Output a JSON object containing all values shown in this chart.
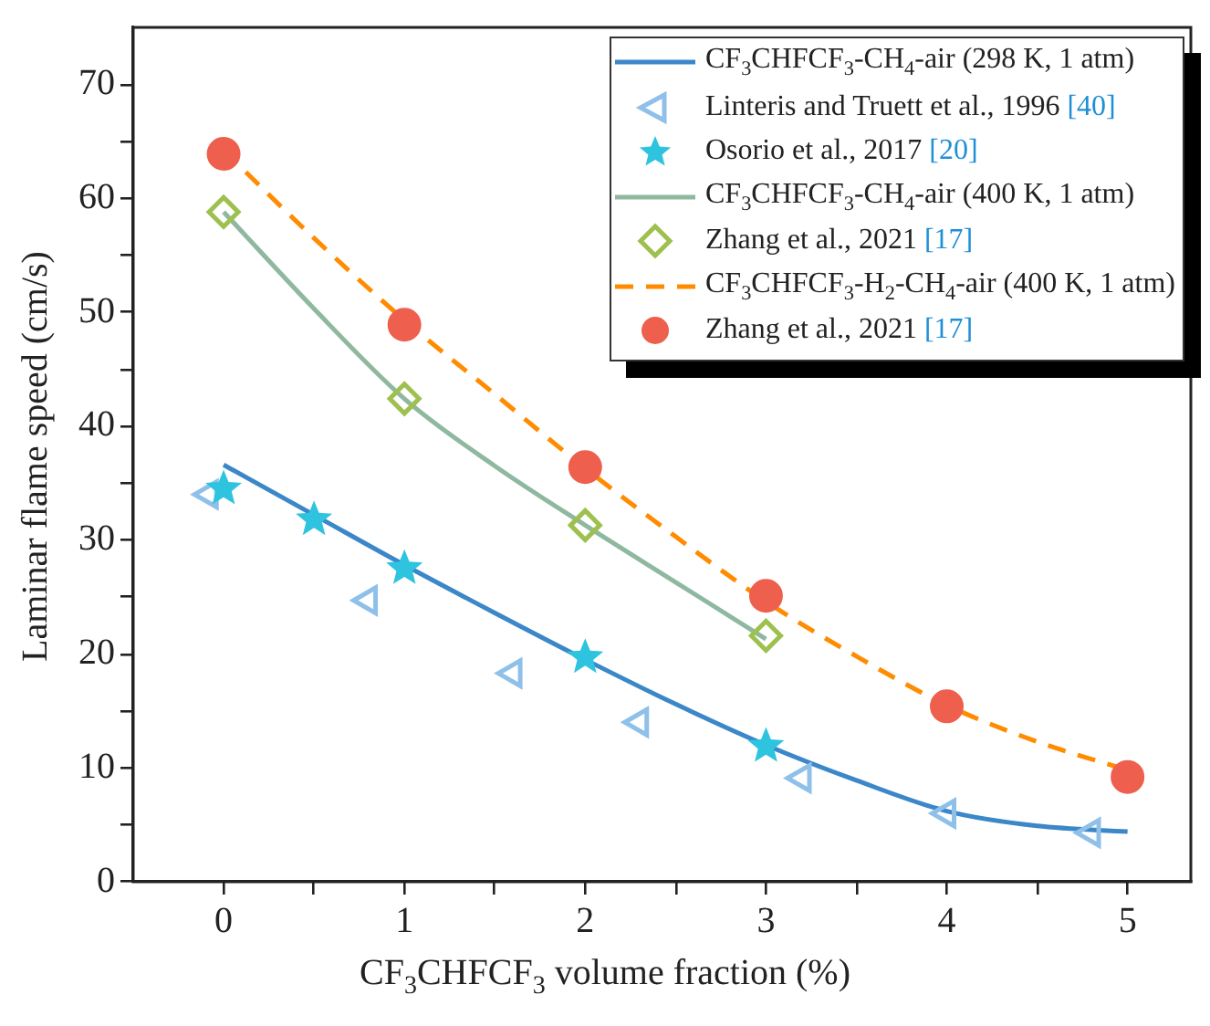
{
  "chart_data": {
    "type": "line",
    "xlabel": "CF$_{3}$CHFCF$_{3}$ volume fraction (%)",
    "ylabel": "Laminar flame speed (cm/s)",
    "xlim": [
      -0.5,
      5.35
    ],
    "ylim": [
      0,
      75
    ],
    "xticks": [
      0,
      {
        "value": 0.5,
        "label": null
      },
      1,
      {
        "value": 1.5,
        "label": null
      },
      2,
      {
        "value": 2.5,
        "label": null
      },
      3,
      {
        "value": 3.5,
        "label": null
      },
      4,
      {
        "value": 4.5,
        "label": null
      },
      5
    ],
    "yticks": [
      0,
      {
        "value": 5,
        "label": null
      },
      10,
      {
        "value": 15,
        "label": null
      },
      20,
      {
        "value": 25,
        "label": null
      },
      30,
      {
        "value": 35,
        "label": null
      },
      40,
      {
        "value": 45,
        "label": null
      },
      50,
      {
        "value": 55,
        "label": null
      },
      60,
      {
        "value": 65,
        "label": null
      },
      70
    ],
    "grid": false,
    "legend": "top right",
    "series": [
      {
        "name": "CF$_{3}$CHFCF$_{3}$-CH$_{4}$-air (298 K, 1 atm)",
        "color": "#3b87c8",
        "line_style": "solid",
        "marker": "none",
        "x": [
          0,
          0.5,
          1,
          1.5,
          2,
          2.5,
          3,
          3.5,
          4,
          4.5,
          5
        ],
        "values": [
          36.6,
          32.2,
          27.8,
          23.6,
          19.5,
          15.6,
          12.0,
          8.9,
          6.2,
          4.9,
          4.4
        ]
      },
      {
        "name": "Linteris and Truett et al., 1996 [40]",
        "type": "scatter",
        "color": "#8ec0ea",
        "marker": "triangle",
        "x": [
          -0.08,
          0.8,
          1.6,
          2.3,
          3.2,
          4.0,
          4.8
        ],
        "values": [
          34.0,
          24.7,
          18.3,
          14.0,
          9.1,
          6.0,
          4.3
        ]
      },
      {
        "name": "Osorio et al., 2017 [20]",
        "type": "scatter",
        "color": "#2ec4e0",
        "marker": "star",
        "x": [
          0,
          0.5,
          1,
          2,
          3
        ],
        "values": [
          34.5,
          31.8,
          27.5,
          19.7,
          11.9
        ]
      },
      {
        "name": "CF$_{3}$CHFCF$_{3}$-CH$_{4}$-air (400 K, 1 atm)",
        "color": "#8fb8a0",
        "line_style": "solid",
        "marker": "none",
        "x": [
          0,
          0.5,
          1,
          1.5,
          2,
          2.5,
          3
        ],
        "values": [
          58.8,
          50.3,
          42.4,
          36.5,
          31.3,
          26.3,
          21.3
        ]
      },
      {
        "name": "Zhang et al., 2021 [17]",
        "type": "scatter",
        "color": "#9dc04e",
        "marker": "diamond",
        "x": [
          0,
          1,
          2,
          3
        ],
        "values": [
          58.8,
          42.4,
          31.3,
          21.6
        ]
      },
      {
        "name": "CF$_{3}$CHFCF$_{3}$-H$_{2}$-CH$_{4}$-air (400 K, 1 atm)",
        "color": "#ff8c00",
        "line_style": "dashed",
        "marker": "none",
        "x": [
          0,
          0.5,
          1,
          1.5,
          2,
          2.5,
          3,
          3.5,
          4,
          4.5,
          5
        ],
        "values": [
          64.2,
          56.5,
          49.3,
          42.8,
          36.3,
          30.3,
          24.6,
          19.8,
          15.5,
          12.3,
          9.8
        ]
      },
      {
        "name": "Zhang et al., 2021 [17]",
        "type": "scatter",
        "color": "#ee5f4d",
        "marker": "circle",
        "x": [
          0,
          1,
          2,
          3,
          4,
          5
        ],
        "values": [
          63.9,
          48.9,
          36.4,
          25.1,
          15.4,
          9.2
        ]
      }
    ]
  }
}
